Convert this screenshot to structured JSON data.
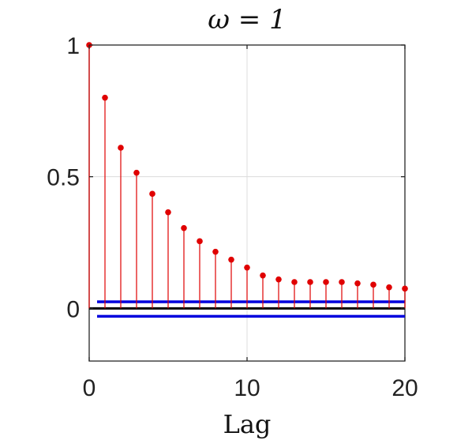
{
  "chart_data": {
    "type": "stem",
    "title": "ω = 1",
    "xlabel": "Lag",
    "ylabel": "",
    "xlim": [
      0,
      20
    ],
    "ylim": [
      -0.2,
      1
    ],
    "xticks": [
      0,
      10,
      20
    ],
    "yticks": [
      0,
      0.5,
      1
    ],
    "xtick_labels": [
      "0",
      "10",
      "20"
    ],
    "ytick_labels": [
      "0",
      "0.5",
      "1"
    ],
    "grid": true,
    "series": [
      {
        "x": [
          0,
          1,
          2,
          3,
          4,
          5,
          6,
          7,
          8,
          9,
          10,
          11,
          12,
          13,
          14,
          15,
          16,
          17,
          18,
          19,
          20
        ],
        "values": [
          1.0,
          0.8,
          0.61,
          0.515,
          0.435,
          0.365,
          0.305,
          0.255,
          0.215,
          0.185,
          0.155,
          0.125,
          0.11,
          0.1,
          0.1,
          0.1,
          0.1,
          0.095,
          0.09,
          0.08,
          0.075
        ],
        "color": "#e00000"
      }
    ],
    "confidence_bounds": {
      "upper": 0.025,
      "lower": -0.03,
      "x_start": 0.5,
      "color": "#0000dd"
    },
    "zero_line_color": "#000000"
  }
}
